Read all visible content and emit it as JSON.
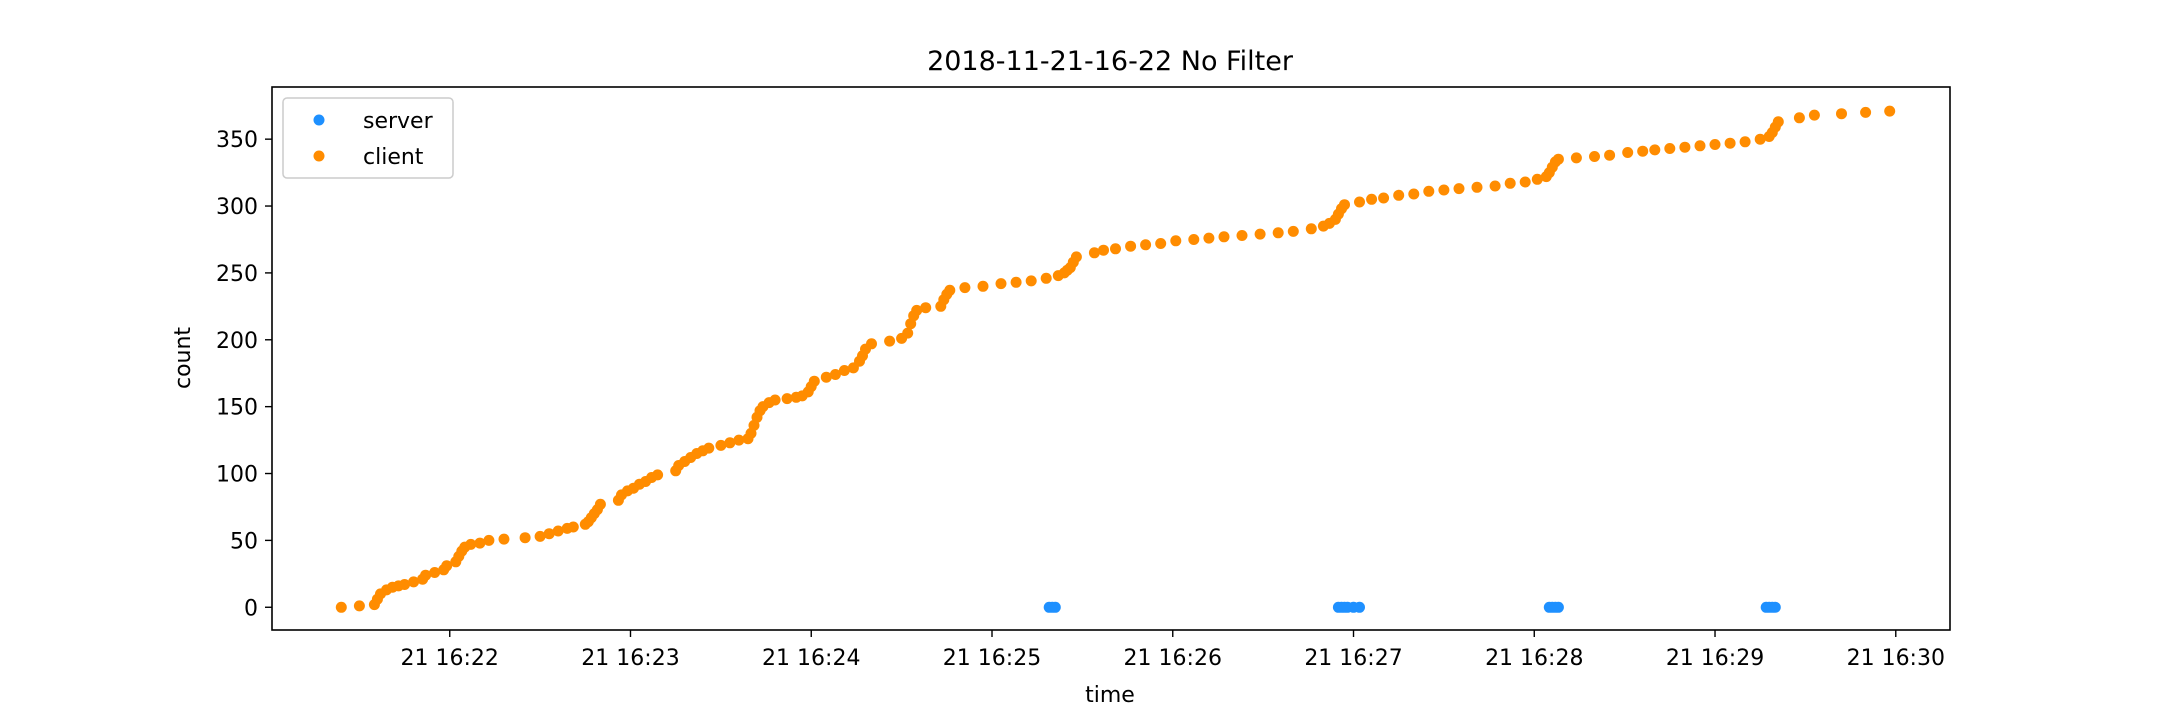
{
  "chart_data": {
    "type": "scatter",
    "title": "2018-11-21-16-22 No Filter",
    "xlabel": "time",
    "ylabel": "count",
    "xlim": [
      "2018-11-21 16:21:01",
      "2018-11-21 16:30:18"
    ],
    "ylim": [
      -17,
      389
    ],
    "x_ticks": [
      {
        "value": "2018-11-21 16:22:00",
        "label": "21 16:22"
      },
      {
        "value": "2018-11-21 16:23:00",
        "label": "21 16:23"
      },
      {
        "value": "2018-11-21 16:24:00",
        "label": "21 16:24"
      },
      {
        "value": "2018-11-21 16:25:00",
        "label": "21 16:25"
      },
      {
        "value": "2018-11-21 16:26:00",
        "label": "21 16:26"
      },
      {
        "value": "2018-11-21 16:27:00",
        "label": "21 16:27"
      },
      {
        "value": "2018-11-21 16:28:00",
        "label": "21 16:28"
      },
      {
        "value": "2018-11-21 16:29:00",
        "label": "21 16:29"
      },
      {
        "value": "2018-11-21 16:30:00",
        "label": "21 16:30"
      }
    ],
    "y_ticks": [
      0,
      50,
      100,
      150,
      200,
      250,
      300,
      350
    ],
    "grid": false,
    "legend": "top-left",
    "series": [
      {
        "name": "server",
        "color": "#1e90ff",
        "points": [
          [
            "2018-11-21 16:25:19",
            0
          ],
          [
            "2018-11-21 16:25:20",
            0
          ],
          [
            "2018-11-21 16:25:21",
            0
          ],
          [
            "2018-11-21 16:26:55",
            0
          ],
          [
            "2018-11-21 16:26:56",
            0
          ],
          [
            "2018-11-21 16:26:57",
            0
          ],
          [
            "2018-11-21 16:26:58",
            0
          ],
          [
            "2018-11-21 16:27:00",
            0
          ],
          [
            "2018-11-21 16:27:02",
            0
          ],
          [
            "2018-11-21 16:28:05",
            0
          ],
          [
            "2018-11-21 16:28:06",
            0
          ],
          [
            "2018-11-21 16:28:07",
            0
          ],
          [
            "2018-11-21 16:28:08",
            0
          ],
          [
            "2018-11-21 16:29:17",
            0
          ],
          [
            "2018-11-21 16:29:18",
            0
          ],
          [
            "2018-11-21 16:29:19",
            0
          ],
          [
            "2018-11-21 16:29:20",
            0
          ]
        ]
      },
      {
        "name": "client",
        "color": "#ff8c00",
        "points": [
          [
            "2018-11-21 16:21:24",
            0
          ],
          [
            "2018-11-21 16:21:30",
            1
          ],
          [
            "2018-11-21 16:21:35",
            2
          ],
          [
            "2018-11-21 16:21:36",
            6
          ],
          [
            "2018-11-21 16:21:37",
            10
          ],
          [
            "2018-11-21 16:21:39",
            13
          ],
          [
            "2018-11-21 16:21:41",
            15
          ],
          [
            "2018-11-21 16:21:43",
            16
          ],
          [
            "2018-11-21 16:21:45",
            17
          ],
          [
            "2018-11-21 16:21:48",
            19
          ],
          [
            "2018-11-21 16:21:51",
            21
          ],
          [
            "2018-11-21 16:21:52",
            24
          ],
          [
            "2018-11-21 16:21:55",
            26
          ],
          [
            "2018-11-21 16:21:58",
            28
          ],
          [
            "2018-11-21 16:21:59",
            31
          ],
          [
            "2018-11-21 16:22:02",
            34
          ],
          [
            "2018-11-21 16:22:03",
            38
          ],
          [
            "2018-11-21 16:22:04",
            42
          ],
          [
            "2018-11-21 16:22:05",
            45
          ],
          [
            "2018-11-21 16:22:07",
            47
          ],
          [
            "2018-11-21 16:22:10",
            48
          ],
          [
            "2018-11-21 16:22:13",
            50
          ],
          [
            "2018-11-21 16:22:18",
            51
          ],
          [
            "2018-11-21 16:22:25",
            52
          ],
          [
            "2018-11-21 16:22:30",
            53
          ],
          [
            "2018-11-21 16:22:33",
            55
          ],
          [
            "2018-11-21 16:22:36",
            57
          ],
          [
            "2018-11-21 16:22:39",
            59
          ],
          [
            "2018-11-21 16:22:41",
            60
          ],
          [
            "2018-11-21 16:22:45",
            62
          ],
          [
            "2018-11-21 16:22:46",
            64
          ],
          [
            "2018-11-21 16:22:47",
            67
          ],
          [
            "2018-11-21 16:22:48",
            70
          ],
          [
            "2018-11-21 16:22:49",
            73
          ],
          [
            "2018-11-21 16:22:50",
            77
          ],
          [
            "2018-11-21 16:22:56",
            80
          ],
          [
            "2018-11-21 16:22:57",
            84
          ],
          [
            "2018-11-21 16:22:59",
            87
          ],
          [
            "2018-11-21 16:23:01",
            89
          ],
          [
            "2018-11-21 16:23:03",
            92
          ],
          [
            "2018-11-21 16:23:05",
            94
          ],
          [
            "2018-11-21 16:23:07",
            97
          ],
          [
            "2018-11-21 16:23:09",
            99
          ],
          [
            "2018-11-21 16:23:15",
            102
          ],
          [
            "2018-11-21 16:23:16",
            106
          ],
          [
            "2018-11-21 16:23:18",
            109
          ],
          [
            "2018-11-21 16:23:20",
            112
          ],
          [
            "2018-11-21 16:23:22",
            115
          ],
          [
            "2018-11-21 16:23:24",
            117
          ],
          [
            "2018-11-21 16:23:26",
            119
          ],
          [
            "2018-11-21 16:23:30",
            121
          ],
          [
            "2018-11-21 16:23:33",
            123
          ],
          [
            "2018-11-21 16:23:36",
            125
          ],
          [
            "2018-11-21 16:23:39",
            126
          ],
          [
            "2018-11-21 16:23:40",
            130
          ],
          [
            "2018-11-21 16:23:41",
            136
          ],
          [
            "2018-11-21 16:23:42",
            142
          ],
          [
            "2018-11-21 16:23:43",
            147
          ],
          [
            "2018-11-21 16:23:44",
            150
          ],
          [
            "2018-11-21 16:23:46",
            153
          ],
          [
            "2018-11-21 16:23:48",
            155
          ],
          [
            "2018-11-21 16:23:52",
            156
          ],
          [
            "2018-11-21 16:23:55",
            157
          ],
          [
            "2018-11-21 16:23:57",
            158
          ],
          [
            "2018-11-21 16:23:59",
            161
          ],
          [
            "2018-11-21 16:24:00",
            165
          ],
          [
            "2018-11-21 16:24:01",
            169
          ],
          [
            "2018-11-21 16:24:05",
            172
          ],
          [
            "2018-11-21 16:24:08",
            174
          ],
          [
            "2018-11-21 16:24:11",
            177
          ],
          [
            "2018-11-21 16:24:14",
            179
          ],
          [
            "2018-11-21 16:24:16",
            184
          ],
          [
            "2018-11-21 16:24:17",
            188
          ],
          [
            "2018-11-21 16:24:18",
            193
          ],
          [
            "2018-11-21 16:24:20",
            197
          ],
          [
            "2018-11-21 16:24:26",
            199
          ],
          [
            "2018-11-21 16:24:30",
            201
          ],
          [
            "2018-11-21 16:24:32",
            205
          ],
          [
            "2018-11-21 16:24:33",
            212
          ],
          [
            "2018-11-21 16:24:34",
            218
          ],
          [
            "2018-11-21 16:24:35",
            222
          ],
          [
            "2018-11-21 16:24:38",
            224
          ],
          [
            "2018-11-21 16:24:43",
            225
          ],
          [
            "2018-11-21 16:24:44",
            230
          ],
          [
            "2018-11-21 16:24:45",
            234
          ],
          [
            "2018-11-21 16:24:46",
            237
          ],
          [
            "2018-11-21 16:24:51",
            239
          ],
          [
            "2018-11-21 16:24:57",
            240
          ],
          [
            "2018-11-21 16:25:03",
            242
          ],
          [
            "2018-11-21 16:25:08",
            243
          ],
          [
            "2018-11-21 16:25:13",
            244
          ],
          [
            "2018-11-21 16:25:18",
            246
          ],
          [
            "2018-11-21 16:25:22",
            248
          ],
          [
            "2018-11-21 16:25:24",
            250
          ],
          [
            "2018-11-21 16:25:25",
            252
          ],
          [
            "2018-11-21 16:25:26",
            254
          ],
          [
            "2018-11-21 16:25:27",
            258
          ],
          [
            "2018-11-21 16:25:28",
            262
          ],
          [
            "2018-11-21 16:25:34",
            265
          ],
          [
            "2018-11-21 16:25:37",
            267
          ],
          [
            "2018-11-21 16:25:41",
            268
          ],
          [
            "2018-11-21 16:25:46",
            270
          ],
          [
            "2018-11-21 16:25:51",
            271
          ],
          [
            "2018-11-21 16:25:56",
            272
          ],
          [
            "2018-11-21 16:26:01",
            274
          ],
          [
            "2018-11-21 16:26:07",
            275
          ],
          [
            "2018-11-21 16:26:12",
            276
          ],
          [
            "2018-11-21 16:26:17",
            277
          ],
          [
            "2018-11-21 16:26:23",
            278
          ],
          [
            "2018-11-21 16:26:29",
            279
          ],
          [
            "2018-11-21 16:26:35",
            280
          ],
          [
            "2018-11-21 16:26:40",
            281
          ],
          [
            "2018-11-21 16:26:46",
            283
          ],
          [
            "2018-11-21 16:26:50",
            285
          ],
          [
            "2018-11-21 16:26:52",
            287
          ],
          [
            "2018-11-21 16:26:54",
            290
          ],
          [
            "2018-11-21 16:26:55",
            294
          ],
          [
            "2018-11-21 16:26:56",
            298
          ],
          [
            "2018-11-21 16:26:57",
            301
          ],
          [
            "2018-11-21 16:27:02",
            303
          ],
          [
            "2018-11-21 16:27:06",
            305
          ],
          [
            "2018-11-21 16:27:10",
            306
          ],
          [
            "2018-11-21 16:27:15",
            308
          ],
          [
            "2018-11-21 16:27:20",
            309
          ],
          [
            "2018-11-21 16:27:25",
            311
          ],
          [
            "2018-11-21 16:27:30",
            312
          ],
          [
            "2018-11-21 16:27:35",
            313
          ],
          [
            "2018-11-21 16:27:41",
            314
          ],
          [
            "2018-11-21 16:27:47",
            315
          ],
          [
            "2018-11-21 16:27:52",
            317
          ],
          [
            "2018-11-21 16:27:57",
            318
          ],
          [
            "2018-11-21 16:28:01",
            320
          ],
          [
            "2018-11-21 16:28:04",
            322
          ],
          [
            "2018-11-21 16:28:05",
            325
          ],
          [
            "2018-11-21 16:28:06",
            329
          ],
          [
            "2018-11-21 16:28:07",
            333
          ],
          [
            "2018-11-21 16:28:08",
            335
          ],
          [
            "2018-11-21 16:28:14",
            336
          ],
          [
            "2018-11-21 16:28:20",
            337
          ],
          [
            "2018-11-21 16:28:25",
            338
          ],
          [
            "2018-11-21 16:28:31",
            340
          ],
          [
            "2018-11-21 16:28:36",
            341
          ],
          [
            "2018-11-21 16:28:40",
            342
          ],
          [
            "2018-11-21 16:28:45",
            343
          ],
          [
            "2018-11-21 16:28:50",
            344
          ],
          [
            "2018-11-21 16:28:55",
            345
          ],
          [
            "2018-11-21 16:29:00",
            346
          ],
          [
            "2018-11-21 16:29:05",
            347
          ],
          [
            "2018-11-21 16:29:10",
            348
          ],
          [
            "2018-11-21 16:29:15",
            350
          ],
          [
            "2018-11-21 16:29:18",
            352
          ],
          [
            "2018-11-21 16:29:19",
            355
          ],
          [
            "2018-11-21 16:29:20",
            359
          ],
          [
            "2018-11-21 16:29:21",
            363
          ],
          [
            "2018-11-21 16:29:28",
            366
          ],
          [
            "2018-11-21 16:29:33",
            368
          ],
          [
            "2018-11-21 16:29:42",
            369
          ],
          [
            "2018-11-21 16:29:50",
            370
          ],
          [
            "2018-11-21 16:29:58",
            371
          ]
        ]
      }
    ]
  }
}
